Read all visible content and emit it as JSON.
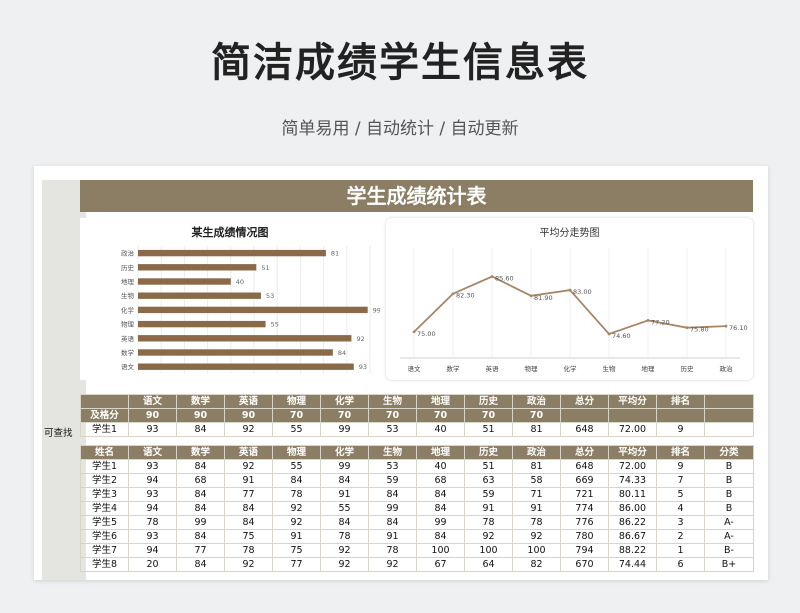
{
  "page": {
    "title": "简洁成绩学生信息表",
    "subtitle": "简单易用 / 自动统计 / 自动更新"
  },
  "sheet": {
    "banner": "学生成绩统计表",
    "lookup_label": "可查找"
  },
  "colors": {
    "accent": "#8b7e64",
    "bar": "#8b6a4a",
    "line": "#a88565"
  },
  "chart_data": [
    {
      "type": "bar",
      "title": "某生成绩情况图",
      "orientation": "horizontal",
      "categories": [
        "政治",
        "历史",
        "地理",
        "生物",
        "化学",
        "物理",
        "英语",
        "数学",
        "语文"
      ],
      "values": [
        81,
        51,
        40,
        53,
        99,
        55,
        92,
        84,
        93
      ],
      "xlim": [
        0,
        100
      ],
      "grid": true
    },
    {
      "type": "line",
      "title": "平均分走势图",
      "categories": [
        "语文",
        "数学",
        "英语",
        "物理",
        "化学",
        "生物",
        "地理",
        "历史",
        "政治"
      ],
      "values": [
        75.0,
        82.3,
        85.6,
        81.9,
        83.0,
        74.6,
        77.2,
        75.8,
        76.1
      ],
      "labels": [
        "75.00",
        "82.30",
        "85.60",
        "81.90",
        "83.00",
        "74.60",
        "77.20",
        "75.80",
        "76.10"
      ],
      "grid": true
    }
  ],
  "pass_table": {
    "header": [
      "",
      "语文",
      "数学",
      "英语",
      "物理",
      "化学",
      "生物",
      "地理",
      "历史",
      "政治",
      "总分",
      "平均分",
      "排名",
      ""
    ],
    "pass_row": [
      "及格分",
      "90",
      "90",
      "90",
      "70",
      "70",
      "70",
      "70",
      "70",
      "70",
      "",
      "",
      "",
      ""
    ],
    "lookup_row": [
      "学生1",
      "93",
      "84",
      "92",
      "55",
      "99",
      "53",
      "40",
      "51",
      "81",
      "648",
      "72.00",
      "9",
      ""
    ]
  },
  "student_table": {
    "header": [
      "姓名",
      "语文",
      "数学",
      "英语",
      "物理",
      "化学",
      "生物",
      "地理",
      "历史",
      "政治",
      "总分",
      "平均分",
      "排名",
      "分类"
    ],
    "rows": [
      [
        "学生1",
        "93",
        "84",
        "92",
        "55",
        "99",
        "53",
        "40",
        "51",
        "81",
        "648",
        "72.00",
        "9",
        "B"
      ],
      [
        "学生2",
        "94",
        "68",
        "91",
        "84",
        "84",
        "59",
        "68",
        "63",
        "58",
        "669",
        "74.33",
        "7",
        "B"
      ],
      [
        "学生3",
        "93",
        "84",
        "77",
        "78",
        "91",
        "84",
        "84",
        "59",
        "71",
        "721",
        "80.11",
        "5",
        "B"
      ],
      [
        "学生4",
        "94",
        "84",
        "84",
        "92",
        "55",
        "99",
        "84",
        "91",
        "91",
        "774",
        "86.00",
        "4",
        "B"
      ],
      [
        "学生5",
        "78",
        "99",
        "84",
        "92",
        "84",
        "84",
        "99",
        "78",
        "78",
        "776",
        "86.22",
        "3",
        "A-"
      ],
      [
        "学生6",
        "93",
        "84",
        "75",
        "91",
        "78",
        "91",
        "84",
        "92",
        "92",
        "780",
        "86.67",
        "2",
        "A-"
      ],
      [
        "学生7",
        "94",
        "77",
        "78",
        "75",
        "92",
        "78",
        "100",
        "100",
        "100",
        "794",
        "88.22",
        "1",
        "B-"
      ],
      [
        "学生8",
        "20",
        "84",
        "92",
        "77",
        "92",
        "92",
        "67",
        "64",
        "82",
        "670",
        "74.44",
        "6",
        "B+"
      ]
    ]
  }
}
